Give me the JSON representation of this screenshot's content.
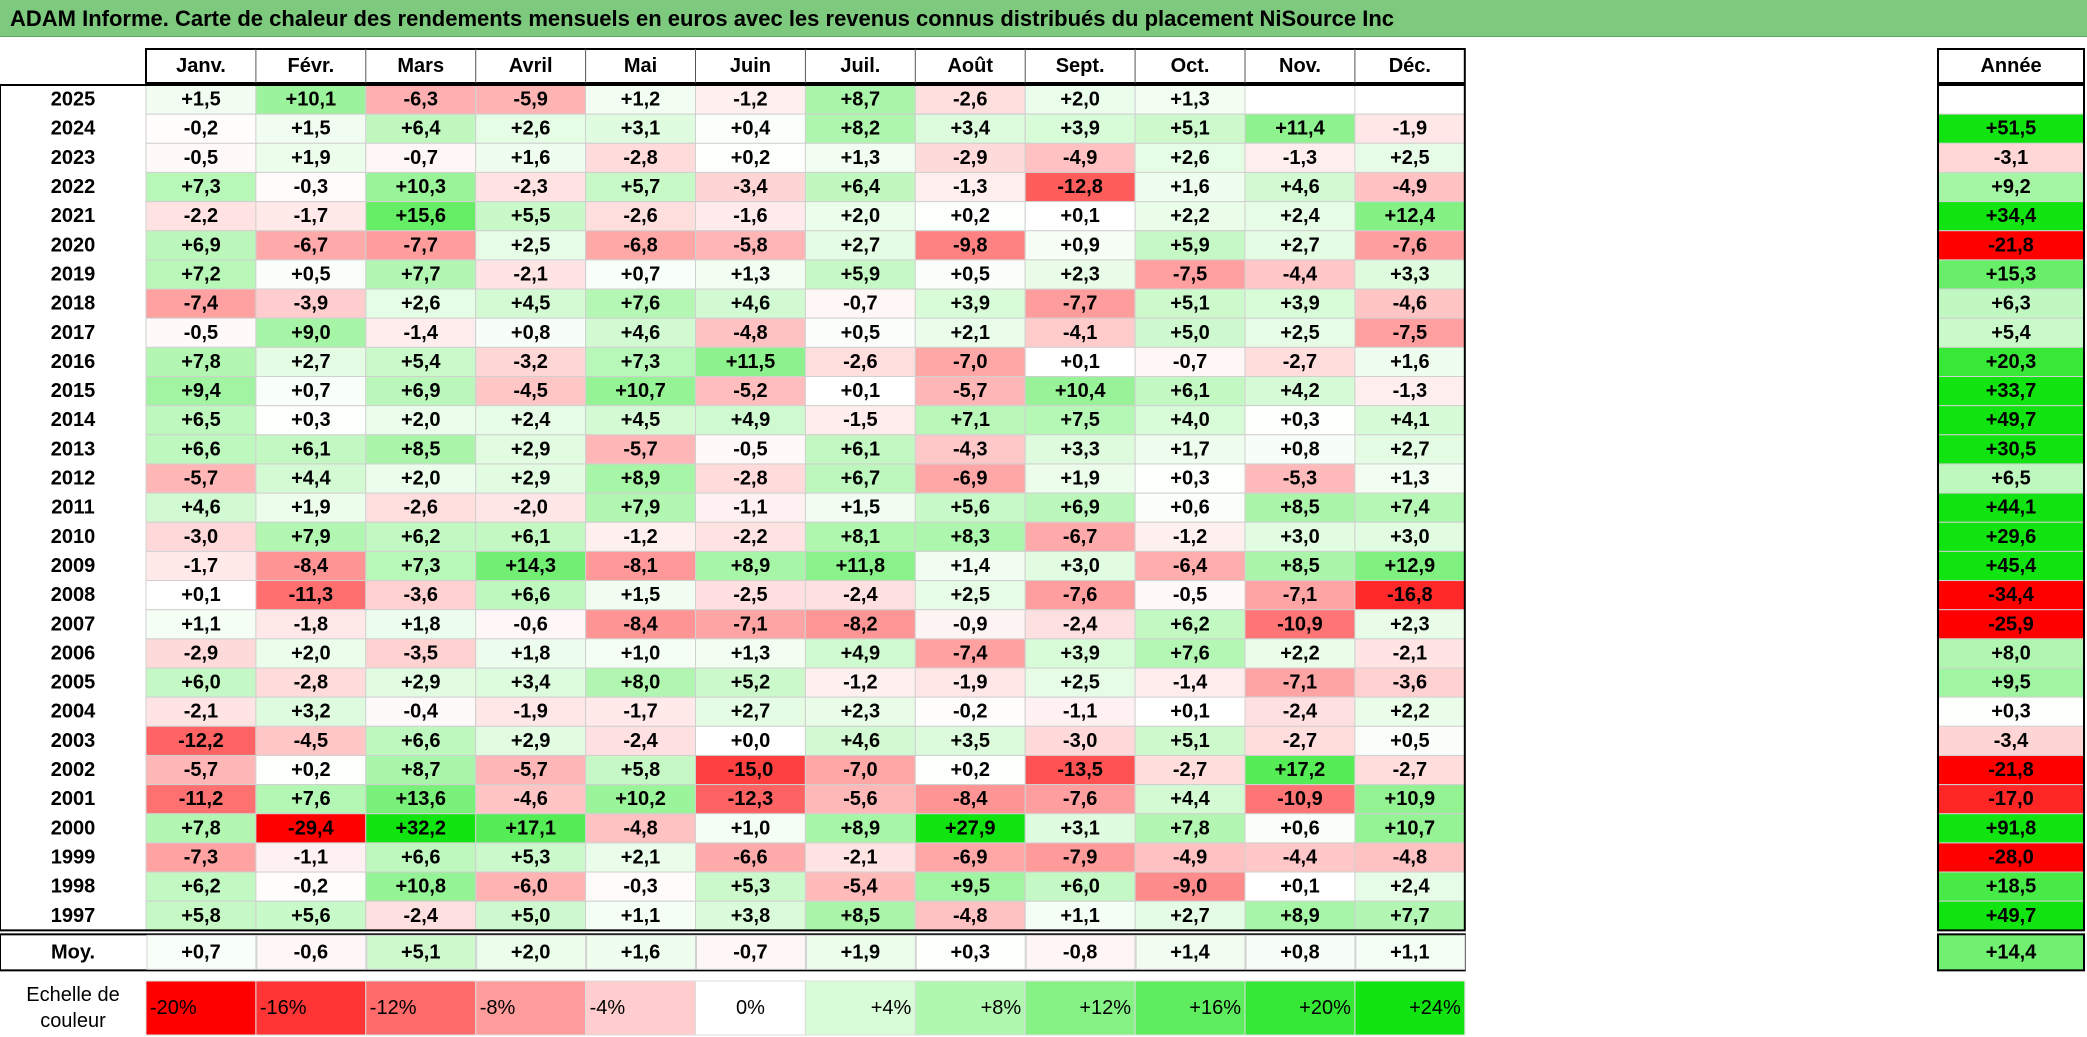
{
  "title": "ADAM Informe. Carte de chaleur des rendements mensuels en euros avec les revenus connus distribués du placement NiSource Inc",
  "chart_data": {
    "type": "heatmap",
    "months": [
      "Janv.",
      "Févr.",
      "Mars",
      "Avril",
      "Mai",
      "Juin",
      "Juil.",
      "Août",
      "Sept.",
      "Oct.",
      "Nov.",
      "Déc."
    ],
    "year_header": "Année",
    "rows": [
      {
        "year": "2025",
        "values": [
          "+1,5",
          "+10,1",
          "-6,3",
          "-5,9",
          "+1,2",
          "-1,2",
          "+8,7",
          "-2,6",
          "+2,0",
          "+1,3",
          "",
          ""
        ],
        "annual": ""
      },
      {
        "year": "2024",
        "values": [
          "-0,2",
          "+1,5",
          "+6,4",
          "+2,6",
          "+3,1",
          "+0,4",
          "+8,2",
          "+3,4",
          "+3,9",
          "+5,1",
          "+11,4",
          "-1,9"
        ],
        "annual": "+51,5"
      },
      {
        "year": "2023",
        "values": [
          "-0,5",
          "+1,9",
          "-0,7",
          "+1,6",
          "-2,8",
          "+0,2",
          "+1,3",
          "-2,9",
          "-4,9",
          "+2,6",
          "-1,3",
          "+2,5"
        ],
        "annual": "-3,1"
      },
      {
        "year": "2022",
        "values": [
          "+7,3",
          "-0,3",
          "+10,3",
          "-2,3",
          "+5,7",
          "-3,4",
          "+6,4",
          "-1,3",
          "-12,8",
          "+1,6",
          "+4,6",
          "-4,9"
        ],
        "annual": "+9,2"
      },
      {
        "year": "2021",
        "values": [
          "-2,2",
          "-1,7",
          "+15,6",
          "+5,5",
          "-2,6",
          "-1,6",
          "+2,0",
          "+0,2",
          "+0,1",
          "+2,2",
          "+2,4",
          "+12,4"
        ],
        "annual": "+34,4"
      },
      {
        "year": "2020",
        "values": [
          "+6,9",
          "-6,7",
          "-7,7",
          "+2,5",
          "-6,8",
          "-5,8",
          "+2,7",
          "-9,8",
          "+0,9",
          "+5,9",
          "+2,7",
          "-7,6"
        ],
        "annual": "-21,8"
      },
      {
        "year": "2019",
        "values": [
          "+7,2",
          "+0,5",
          "+7,7",
          "-2,1",
          "+0,7",
          "+1,3",
          "+5,9",
          "+0,5",
          "+2,3",
          "-7,5",
          "-4,4",
          "+3,3"
        ],
        "annual": "+15,3"
      },
      {
        "year": "2018",
        "values": [
          "-7,4",
          "-3,9",
          "+2,6",
          "+4,5",
          "+7,6",
          "+4,6",
          "-0,7",
          "+3,9",
          "-7,7",
          "+5,1",
          "+3,9",
          "-4,6"
        ],
        "annual": "+6,3"
      },
      {
        "year": "2017",
        "values": [
          "-0,5",
          "+9,0",
          "-1,4",
          "+0,8",
          "+4,6",
          "-4,8",
          "+0,5",
          "+2,1",
          "-4,1",
          "+5,0",
          "+2,5",
          "-7,5"
        ],
        "annual": "+5,4"
      },
      {
        "year": "2016",
        "values": [
          "+7,8",
          "+2,7",
          "+5,4",
          "-3,2",
          "+7,3",
          "+11,5",
          "-2,6",
          "-7,0",
          "+0,1",
          "-0,7",
          "-2,7",
          "+1,6"
        ],
        "annual": "+20,3"
      },
      {
        "year": "2015",
        "values": [
          "+9,4",
          "+0,7",
          "+6,9",
          "-4,5",
          "+10,7",
          "-5,2",
          "+0,1",
          "-5,7",
          "+10,4",
          "+6,1",
          "+4,2",
          "-1,3"
        ],
        "annual": "+33,7"
      },
      {
        "year": "2014",
        "values": [
          "+6,5",
          "+0,3",
          "+2,0",
          "+2,4",
          "+4,5",
          "+4,9",
          "-1,5",
          "+7,1",
          "+7,5",
          "+4,0",
          "+0,3",
          "+4,1"
        ],
        "annual": "+49,7"
      },
      {
        "year": "2013",
        "values": [
          "+6,6",
          "+6,1",
          "+8,5",
          "+2,9",
          "-5,7",
          "-0,5",
          "+6,1",
          "-4,3",
          "+3,3",
          "+1,7",
          "+0,8",
          "+2,7"
        ],
        "annual": "+30,5"
      },
      {
        "year": "2012",
        "values": [
          "-5,7",
          "+4,4",
          "+2,0",
          "+2,9",
          "+8,9",
          "-2,8",
          "+6,7",
          "-6,9",
          "+1,9",
          "+0,3",
          "-5,3",
          "+1,3"
        ],
        "annual": "+6,5"
      },
      {
        "year": "2011",
        "values": [
          "+4,6",
          "+1,9",
          "-2,6",
          "-2,0",
          "+7,9",
          "-1,1",
          "+1,5",
          "+5,6",
          "+6,9",
          "+0,6",
          "+8,5",
          "+7,4"
        ],
        "annual": "+44,1"
      },
      {
        "year": "2010",
        "values": [
          "-3,0",
          "+7,9",
          "+6,2",
          "+6,1",
          "-1,2",
          "-2,2",
          "+8,1",
          "+8,3",
          "-6,7",
          "-1,2",
          "+3,0",
          "+3,0"
        ],
        "annual": "+29,6"
      },
      {
        "year": "2009",
        "values": [
          "-1,7",
          "-8,4",
          "+7,3",
          "+14,3",
          "-8,1",
          "+8,9",
          "+11,8",
          "+1,4",
          "+3,0",
          "-6,4",
          "+8,5",
          "+12,9"
        ],
        "annual": "+45,4"
      },
      {
        "year": "2008",
        "values": [
          "+0,1",
          "-11,3",
          "-3,6",
          "+6,6",
          "+1,5",
          "-2,5",
          "-2,4",
          "+2,5",
          "-7,6",
          "-0,5",
          "-7,1",
          "-16,8"
        ],
        "annual": "-34,4"
      },
      {
        "year": "2007",
        "values": [
          "+1,1",
          "-1,8",
          "+1,8",
          "-0,6",
          "-8,4",
          "-7,1",
          "-8,2",
          "-0,9",
          "-2,4",
          "+6,2",
          "-10,9",
          "+2,3"
        ],
        "annual": "-25,9"
      },
      {
        "year": "2006",
        "values": [
          "-2,9",
          "+2,0",
          "-3,5",
          "+1,8",
          "+1,0",
          "+1,3",
          "+4,9",
          "-7,4",
          "+3,9",
          "+7,6",
          "+2,2",
          "-2,1"
        ],
        "annual": "+8,0"
      },
      {
        "year": "2005",
        "values": [
          "+6,0",
          "-2,8",
          "+2,9",
          "+3,4",
          "+8,0",
          "+5,2",
          "-1,2",
          "-1,9",
          "+2,5",
          "-1,4",
          "-7,1",
          "-3,6"
        ],
        "annual": "+9,5"
      },
      {
        "year": "2004",
        "values": [
          "-2,1",
          "+3,2",
          "-0,4",
          "-1,9",
          "-1,7",
          "+2,7",
          "+2,3",
          "-0,2",
          "-1,1",
          "+0,1",
          "-2,4",
          "+2,2"
        ],
        "annual": "+0,3"
      },
      {
        "year": "2003",
        "values": [
          "-12,2",
          "-4,5",
          "+6,6",
          "+2,9",
          "-2,4",
          "+0,0",
          "+4,6",
          "+3,5",
          "-3,0",
          "+5,1",
          "-2,7",
          "+0,5"
        ],
        "annual": "-3,4"
      },
      {
        "year": "2002",
        "values": [
          "-5,7",
          "+0,2",
          "+8,7",
          "-5,7",
          "+5,8",
          "-15,0",
          "-7,0",
          "+0,2",
          "-13,5",
          "-2,7",
          "+17,2",
          "-2,7"
        ],
        "annual": "-21,8"
      },
      {
        "year": "2001",
        "values": [
          "-11,2",
          "+7,6",
          "+13,6",
          "-4,6",
          "+10,2",
          "-12,3",
          "-5,6",
          "-8,4",
          "-7,6",
          "+4,4",
          "-10,9",
          "+10,9"
        ],
        "annual": "-17,0"
      },
      {
        "year": "2000",
        "values": [
          "+7,8",
          "-29,4",
          "+32,2",
          "+17,1",
          "-4,8",
          "+1,0",
          "+8,9",
          "+27,9",
          "+3,1",
          "+7,8",
          "+0,6",
          "+10,7"
        ],
        "annual": "+91,8"
      },
      {
        "year": "1999",
        "values": [
          "-7,3",
          "-1,1",
          "+6,6",
          "+5,3",
          "+2,1",
          "-6,6",
          "-2,1",
          "-6,9",
          "-7,9",
          "-4,9",
          "-4,4",
          "-4,8"
        ],
        "annual": "-28,0"
      },
      {
        "year": "1998",
        "values": [
          "+6,2",
          "-0,2",
          "+10,8",
          "-6,0",
          "-0,3",
          "+5,3",
          "-5,4",
          "+9,5",
          "+6,0",
          "-9,0",
          "+0,1",
          "+2,4"
        ],
        "annual": "+18,5"
      },
      {
        "year": "1997",
        "values": [
          "+5,8",
          "+5,6",
          "-2,4",
          "+5,0",
          "+1,1",
          "+3,8",
          "+8,5",
          "-4,8",
          "+1,1",
          "+2,7",
          "+8,9",
          "+7,7"
        ],
        "annual": "+49,7"
      }
    ],
    "average": {
      "label": "Moy.",
      "values": [
        "+0,7",
        "-0,6",
        "+5,1",
        "+2,0",
        "+1,6",
        "-0,7",
        "+1,9",
        "+0,3",
        "-0,8",
        "+1,4",
        "+0,8",
        "+1,1"
      ],
      "annual": "+14,4"
    },
    "scale": {
      "label_line1": "Echelle de",
      "label_line2": "couleur",
      "steps": [
        {
          "label": "-20%",
          "value": -20,
          "color": "#ff0000"
        },
        {
          "label": "-16%",
          "value": -16,
          "color": "#ff3535"
        },
        {
          "label": "-12%",
          "value": -12,
          "color": "#ff6a6a"
        },
        {
          "label": "-8%",
          "value": -8,
          "color": "#ff9c9c"
        },
        {
          "label": "-4%",
          "value": -4,
          "color": "#ffcdcd"
        },
        {
          "label": "0%",
          "value": 0,
          "color": "#ffffff"
        },
        {
          "label": "+4%",
          "value": 4,
          "color": "#d8fbd8"
        },
        {
          "label": "+8%",
          "value": 8,
          "color": "#b0f7b0"
        },
        {
          "label": "+12%",
          "value": 12,
          "color": "#86f286"
        },
        {
          "label": "+16%",
          "value": 16,
          "color": "#5eed5e"
        },
        {
          "label": "+20%",
          "value": 20,
          "color": "#36e836"
        },
        {
          "label": "+24%",
          "value": 24,
          "color": "#12e412"
        }
      ]
    }
  }
}
